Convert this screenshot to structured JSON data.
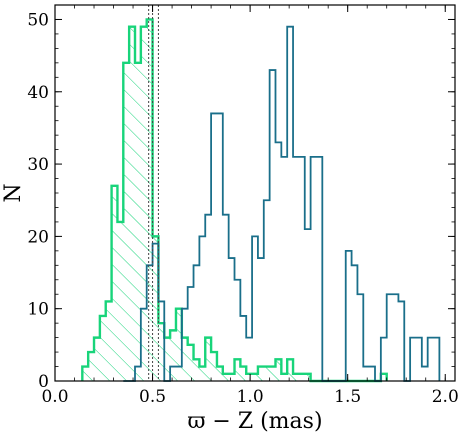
{
  "chart_data": {
    "type": "histogram",
    "xlabel": "ϖ − Z (mas)",
    "ylabel": "N",
    "xlim": [
      0.0,
      2.05
    ],
    "ylim": [
      0,
      52
    ],
    "xticks": [
      "0.0",
      "0.5",
      "1.0",
      "1.5",
      "2.0"
    ],
    "yticks": [
      "0",
      "10",
      "20",
      "30",
      "40",
      "50"
    ],
    "xtick_values": [
      0.0,
      0.5,
      1.0,
      1.5,
      2.0
    ],
    "ytick_values": [
      0,
      10,
      20,
      30,
      40,
      50
    ],
    "vlines": [
      0.48,
      0.5,
      0.53
    ],
    "series": [
      {
        "color": "#18d47a",
        "hatch": true,
        "edges": [
          0.14,
          0.17,
          0.2,
          0.23,
          0.26,
          0.29,
          0.32,
          0.35,
          0.38,
          0.41,
          0.44,
          0.47,
          0.5,
          0.53,
          0.56,
          0.59,
          0.62,
          0.65,
          0.68,
          0.71,
          0.74,
          0.77,
          0.8,
          0.83,
          0.86,
          0.89,
          0.92,
          0.95,
          0.98,
          1.01,
          1.04,
          1.07,
          1.1,
          1.13,
          1.16,
          1.19,
          1.22,
          1.25,
          1.28,
          1.31,
          1.34,
          1.37,
          1.4,
          1.43,
          1.46,
          1.49,
          1.52,
          1.55,
          1.58,
          1.61,
          1.64,
          1.67,
          1.7
        ],
        "counts": [
          2,
          4,
          6,
          9,
          11,
          27,
          22,
          44,
          49,
          44,
          49,
          50,
          20,
          8,
          6,
          7,
          10,
          6,
          5,
          3,
          2,
          6,
          4,
          2,
          1,
          1,
          3,
          2,
          1,
          1,
          2,
          2,
          2,
          3,
          1,
          3,
          1,
          1,
          1,
          0,
          0,
          0,
          0,
          0,
          0,
          0,
          0,
          0,
          0,
          0,
          0,
          1
        ]
      },
      {
        "color": "#1a6f8a",
        "hatch": false,
        "edges": [
          0.35,
          0.38,
          0.41,
          0.44,
          0.47,
          0.5,
          0.53,
          0.56,
          0.59,
          0.62,
          0.65,
          0.68,
          0.71,
          0.74,
          0.77,
          0.8,
          0.83,
          0.86,
          0.89,
          0.92,
          0.95,
          0.98,
          1.01,
          1.04,
          1.07,
          1.1,
          1.13,
          1.16,
          1.19,
          1.22,
          1.25,
          1.28,
          1.31,
          1.34,
          1.37,
          1.4,
          1.43,
          1.46,
          1.49,
          1.52,
          1.55,
          1.58,
          1.61,
          1.64,
          1.67,
          1.7,
          1.73,
          1.76,
          1.79,
          1.82,
          1.85,
          1.88,
          1.91,
          1.94,
          1.97
        ],
        "counts": [
          0,
          0,
          2,
          10,
          16,
          19,
          11,
          0,
          2,
          2,
          10,
          13,
          16,
          20,
          23,
          37,
          37,
          23,
          17,
          14,
          9,
          6,
          20,
          17,
          25,
          43,
          33,
          31,
          49,
          31,
          31,
          21,
          31,
          31,
          0,
          0,
          0,
          0,
          18,
          16,
          12,
          2,
          2,
          0,
          6,
          12,
          12,
          11,
          0,
          6,
          6,
          2,
          6,
          6
        ]
      }
    ]
  }
}
